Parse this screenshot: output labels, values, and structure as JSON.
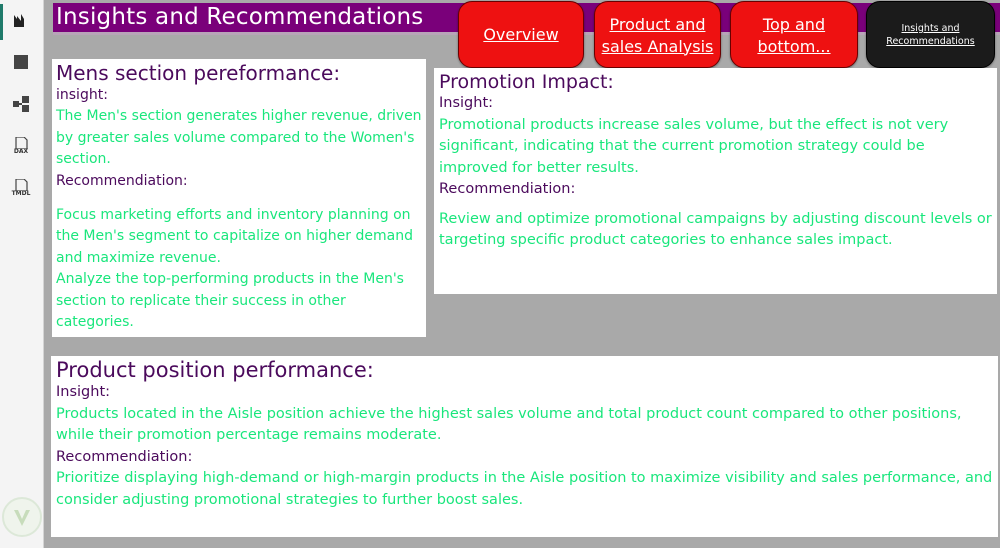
{
  "page_title": "Insights and Recommendations",
  "nav": {
    "overview": "Overview",
    "product_line1": "Product and",
    "product_line2": "sales Analysis",
    "topbottom_line1": "Top and",
    "topbottom_line2": "bottom...",
    "insights_line1": "Insights and",
    "insights_line2": "Recommendations"
  },
  "sidebar_icons": [
    "report-view-icon",
    "table-view-icon",
    "model-view-icon",
    "dax-query-icon",
    "tmdl-view-icon"
  ],
  "sidebar_labels": {
    "dax": "DAX",
    "tmdl": "TMDL"
  },
  "mens_card": {
    "title": "Mens section pereformance:",
    "insight_label": "insight:",
    "insight_text": "The Men's section generates higher revenue, driven by greater sales volume compared to the Women's section.",
    "recommendation_label": "Recommendiation:",
    "recommendation_text1": "Focus marketing efforts and inventory planning on the Men's segment to capitalize on higher demand and maximize revenue.",
    "recommendation_text2": "Analyze the top-performing products in the Men's section to replicate their success in other categories."
  },
  "promo_card": {
    "title": "Promotion Impact:",
    "insight_label": "Insight:",
    "insight_text": "Promotional products increase sales volume, but the effect is not very significant, indicating that the current promotion strategy could be improved for better results.",
    "recommendation_label": "Recommendiation:",
    "recommendation_text": "Review and optimize promotional campaigns by adjusting discount levels or targeting specific product categories to enhance sales impact."
  },
  "position_card": {
    "title": "Product position performance:",
    "insight_label": "Insight:",
    "insight_text": "Products located in the Aisle position achieve the highest sales volume and total product count compared to other positions, while their promotion percentage remains moderate.",
    "recommendation_label": "Recommendiation:",
    "recommendation_text": "Prioritize displaying high-demand or high-margin products in the Aisle position to maximize visibility and sales performance, and consider adjusting promotional strategies to further boost sales."
  },
  "colors": {
    "title_bar": "#7a007a",
    "nav_button": "#ee1111",
    "nav_active": "#1b1b1b",
    "heading": "#4b0a5c",
    "body_text": "#19e67c",
    "canvas_bg": "#a9a9a9"
  }
}
